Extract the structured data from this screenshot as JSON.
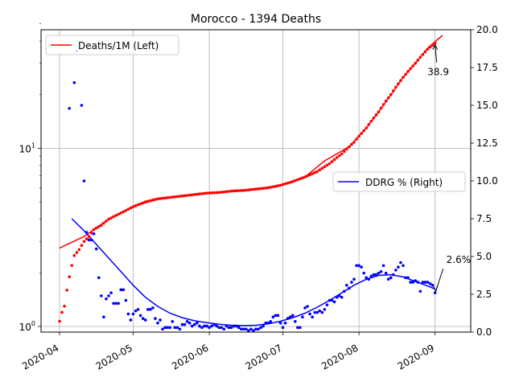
{
  "chart_data": {
    "type": "line",
    "title": "Morocco - 1394 Deaths",
    "x_tick_labels": [
      "2020-04",
      "2020-05",
      "2020-06",
      "2020-07",
      "2020-08",
      "2020-09"
    ],
    "left_axis": {
      "scale": "log",
      "ylim": [
        0.95,
        50
      ],
      "tick_labels": [
        {
          "value": 1,
          "label": "10",
          "sup": "0"
        },
        {
          "value": 10,
          "label": "10",
          "sup": "1"
        }
      ]
    },
    "right_axis": {
      "scale": "linear",
      "ylim": [
        0,
        20
      ],
      "tick_labels": [
        "0.0",
        "2.5",
        "5.0",
        "7.5",
        "10.0",
        "12.5",
        "15.0",
        "17.5",
        "20.0"
      ]
    },
    "series": [
      {
        "name": "Deaths/1M (Left)",
        "axis": "left",
        "color": "#ff0000",
        "points": [
          [
            0,
            1.07
          ],
          [
            1,
            1.2
          ],
          [
            2,
            1.3
          ],
          [
            3,
            1.6
          ],
          [
            4,
            1.9
          ],
          [
            5,
            2.2
          ],
          [
            6,
            2.5
          ],
          [
            7,
            2.6
          ],
          [
            8,
            2.7
          ],
          [
            10,
            3
          ],
          [
            12,
            3.2
          ],
          [
            14,
            3.5
          ],
          [
            17,
            3.7
          ],
          [
            20,
            4
          ],
          [
            23,
            4.2
          ],
          [
            26,
            4.4
          ],
          [
            30,
            4.7
          ],
          [
            35,
            5
          ],
          [
            40,
            5.2
          ],
          [
            45,
            5.3
          ],
          [
            50,
            5.4
          ],
          [
            55,
            5.5
          ],
          [
            60,
            5.6
          ],
          [
            65,
            5.65
          ],
          [
            70,
            5.75
          ],
          [
            75,
            5.8
          ],
          [
            80,
            5.9
          ],
          [
            85,
            6
          ],
          [
            90,
            6.2
          ],
          [
            95,
            6.5
          ],
          [
            100,
            6.9
          ],
          [
            105,
            7.4
          ],
          [
            110,
            8.2
          ],
          [
            115,
            9.3
          ],
          [
            120,
            10.8
          ],
          [
            125,
            13
          ],
          [
            130,
            16
          ],
          [
            135,
            20
          ],
          [
            140,
            25
          ],
          [
            145,
            30
          ],
          [
            150,
            36
          ],
          [
            153,
            38.9
          ]
        ],
        "trend": [
          [
            0,
            2.75
          ],
          [
            10,
            3.2
          ],
          [
            20,
            4
          ],
          [
            30,
            4.7
          ],
          [
            40,
            5.2
          ],
          [
            50,
            5.4
          ],
          [
            60,
            5.6
          ],
          [
            70,
            5.75
          ],
          [
            80,
            5.9
          ],
          [
            90,
            6.2
          ],
          [
            100,
            6.9
          ],
          [
            108,
            8.5
          ],
          [
            118,
            10.2
          ],
          [
            125,
            13
          ],
          [
            130,
            16
          ],
          [
            135,
            20
          ],
          [
            140,
            25
          ],
          [
            145,
            30
          ],
          [
            150,
            36.5
          ],
          [
            156,
            43
          ]
        ]
      },
      {
        "name": "DDRG % (Right)",
        "axis": "right",
        "color": "#0000ff",
        "points": [
          [
            0,
            0.9
          ],
          [
            3,
            2.5
          ],
          [
            7,
            4.8
          ],
          [
            11,
            3.6
          ],
          [
            14,
            3.3
          ],
          [
            18,
            2.9
          ],
          [
            22,
            2.5
          ],
          [
            26,
            2.1
          ],
          [
            30,
            1.7
          ],
          [
            35,
            1.4
          ],
          [
            40,
            1.1
          ],
          [
            45,
            0.9
          ],
          [
            50,
            0.75
          ],
          [
            55,
            0.7
          ],
          [
            60,
            0.65
          ],
          [
            65,
            0.6
          ],
          [
            70,
            0.6
          ],
          [
            75,
            0.62
          ],
          [
            80,
            0.7
          ],
          [
            85,
            0.8
          ],
          [
            90,
            0.95
          ],
          [
            95,
            1.15
          ],
          [
            100,
            1.5
          ],
          [
            105,
            1.9
          ],
          [
            110,
            2.4
          ],
          [
            115,
            2.9
          ],
          [
            120,
            3.4
          ],
          [
            125,
            3.7
          ],
          [
            130,
            3.9
          ],
          [
            135,
            3.85
          ],
          [
            140,
            3.6
          ],
          [
            145,
            3.3
          ],
          [
            150,
            3
          ],
          [
            153,
            2.6
          ]
        ],
        "trend": [
          [
            5,
            7.5
          ],
          [
            10,
            6.7
          ],
          [
            15,
            5.8
          ],
          [
            20,
            4.9
          ],
          [
            25,
            4
          ],
          [
            30,
            3.1
          ],
          [
            35,
            2.3
          ],
          [
            40,
            1.7
          ],
          [
            45,
            1.25
          ],
          [
            50,
            0.95
          ],
          [
            55,
            0.75
          ],
          [
            60,
            0.62
          ],
          [
            65,
            0.52
          ],
          [
            70,
            0.45
          ],
          [
            75,
            0.43
          ],
          [
            80,
            0.45
          ],
          [
            85,
            0.55
          ],
          [
            90,
            0.72
          ],
          [
            95,
            0.95
          ],
          [
            100,
            1.25
          ],
          [
            105,
            1.65
          ],
          [
            110,
            2.1
          ],
          [
            115,
            2.6
          ],
          [
            120,
            3.1
          ],
          [
            125,
            3.5
          ],
          [
            130,
            3.75
          ],
          [
            135,
            3.8
          ],
          [
            140,
            3.65
          ],
          [
            145,
            3.35
          ],
          [
            150,
            3.05
          ],
          [
            153,
            2.85
          ]
        ],
        "scatter": [
          [
            4,
            14.8
          ],
          [
            6,
            16.5
          ],
          [
            7,
            18.6
          ],
          [
            9,
            15
          ],
          [
            10,
            10
          ],
          [
            11,
            6.6
          ],
          [
            12,
            6.1
          ],
          [
            13,
            6.1
          ],
          [
            14,
            6.5
          ],
          [
            15,
            5.5
          ],
          [
            16,
            3.6
          ],
          [
            17,
            2.4
          ],
          [
            18,
            1
          ],
          [
            19,
            2.2
          ],
          [
            20,
            2.4
          ],
          [
            21,
            2.6
          ],
          [
            22,
            1.9
          ],
          [
            23,
            1.9
          ],
          [
            24,
            1.9
          ],
          [
            25,
            2.8
          ],
          [
            26,
            2.8
          ],
          [
            27,
            2.1
          ],
          [
            28,
            1.2
          ],
          [
            29,
            0.8
          ],
          [
            30,
            1.2
          ],
          [
            31,
            1.4
          ],
          [
            32,
            1.5
          ],
          [
            33,
            1.1
          ],
          [
            34,
            0.9
          ],
          [
            35,
            0.8
          ],
          [
            36,
            1.5
          ],
          [
            37,
            1.5
          ],
          [
            38,
            1.6
          ],
          [
            39,
            0.9
          ],
          [
            40,
            0.6
          ],
          [
            41,
            0.8
          ],
          [
            42,
            0.2
          ],
          [
            43,
            0.3
          ],
          [
            44,
            0.3
          ],
          [
            45,
            0.3
          ],
          [
            46,
            0.7
          ],
          [
            47,
            0.3
          ],
          [
            48,
            0.3
          ],
          [
            49,
            0.2
          ],
          [
            50,
            0.5
          ],
          [
            51,
            0.5
          ],
          [
            52,
            0.7
          ],
          [
            53,
            0.6
          ],
          [
            54,
            0.4
          ],
          [
            55,
            0.5
          ],
          [
            56,
            0.6
          ],
          [
            57,
            0.4
          ],
          [
            58,
            0.3
          ],
          [
            59,
            0.4
          ],
          [
            60,
            0.4
          ],
          [
            61,
            0.3
          ],
          [
            62,
            0.4
          ],
          [
            63,
            0.5
          ],
          [
            64,
            0.4
          ],
          [
            65,
            0.3
          ],
          [
            66,
            0.3
          ],
          [
            67,
            0.2
          ],
          [
            68,
            0.4
          ],
          [
            69,
            0.3
          ],
          [
            70,
            0.3
          ],
          [
            71,
            0.4
          ],
          [
            72,
            0.4
          ],
          [
            73,
            0.3
          ],
          [
            74,
            0.2
          ],
          [
            75,
            0.2
          ],
          [
            76,
            0.2
          ],
          [
            77,
            0.1
          ],
          [
            78,
            0.2
          ],
          [
            79,
            0.1
          ],
          [
            80,
            0.2
          ],
          [
            81,
            0.2
          ],
          [
            82,
            0.3
          ],
          [
            83,
            0.4
          ],
          [
            84,
            0.6
          ],
          [
            85,
            0.6
          ],
          [
            86,
            0.7
          ],
          [
            87,
            1
          ],
          [
            88,
            1.1
          ],
          [
            89,
            1.1
          ],
          [
            90,
            0.6
          ],
          [
            91,
            0.3
          ],
          [
            92,
            0.6
          ],
          [
            93,
            0.9
          ],
          [
            94,
            1
          ],
          [
            95,
            1.1
          ],
          [
            96,
            0.7
          ],
          [
            97,
            0.3
          ],
          [
            98,
            0.3
          ],
          [
            99,
            1
          ],
          [
            100,
            1.6
          ],
          [
            101,
            1.7
          ],
          [
            102,
            1.2
          ],
          [
            103,
            1
          ],
          [
            104,
            1.3
          ],
          [
            105,
            1.3
          ],
          [
            106,
            1.4
          ],
          [
            107,
            1.3
          ],
          [
            108,
            1.5
          ],
          [
            109,
            1.8
          ],
          [
            110,
            2.1
          ],
          [
            111,
            2.1
          ],
          [
            112,
            2
          ],
          [
            113,
            2.3
          ],
          [
            114,
            2.4
          ],
          [
            115,
            2.3
          ],
          [
            116,
            2.7
          ],
          [
            117,
            3.1
          ],
          [
            118,
            2.9
          ],
          [
            119,
            3.3
          ],
          [
            120,
            3.5
          ],
          [
            121,
            4.4
          ],
          [
            122,
            4.4
          ],
          [
            123,
            4.3
          ],
          [
            124,
            3.9
          ],
          [
            125,
            3.6
          ],
          [
            126,
            3.5
          ],
          [
            127,
            3.7
          ],
          [
            128,
            3.8
          ],
          [
            129,
            3.8
          ],
          [
            130,
            3.9
          ],
          [
            131,
            4
          ],
          [
            132,
            4.4
          ],
          [
            133,
            3.9
          ],
          [
            134,
            3.5
          ],
          [
            135,
            3.6
          ],
          [
            136,
            3.8
          ],
          [
            137,
            4.1
          ],
          [
            138,
            4.3
          ],
          [
            139,
            4.6
          ],
          [
            140,
            4.4
          ],
          [
            141,
            3.6
          ],
          [
            142,
            3.6
          ],
          [
            143,
            3.3
          ],
          [
            144,
            3.3
          ],
          [
            145,
            3.4
          ],
          [
            146,
            3.3
          ],
          [
            147,
            2.7
          ],
          [
            148,
            3.3
          ],
          [
            149,
            3.3
          ],
          [
            150,
            3.3
          ],
          [
            151,
            3.2
          ],
          [
            152,
            3.1
          ],
          [
            153,
            2.6
          ]
        ]
      }
    ],
    "annotations": [
      {
        "text": "38.9",
        "series": "Deaths/1M (Left)"
      },
      {
        "text": "2.6%",
        "series": "DDRG % (Right)"
      }
    ],
    "grid": true,
    "legend_left": "top-left",
    "legend_right": "middle-right"
  }
}
